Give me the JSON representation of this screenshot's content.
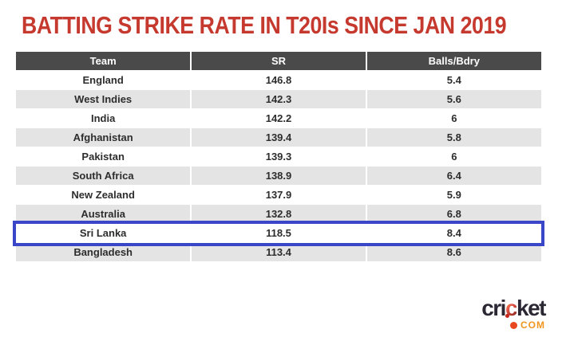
{
  "title": "BATTING STRIKE RATE IN T20Is SINCE JAN 2019",
  "colors": {
    "title_red": "#c6392e",
    "header_bg": "#4a4a4a",
    "row_alt_bg": "#e4e4e4",
    "highlight_blue": "#3a46c8",
    "logo_dark": "#2b2733",
    "logo_orange": "#f0951f",
    "logo_red": "#e8481f"
  },
  "table": {
    "columns": [
      "Team",
      "SR",
      "Balls/Bdry"
    ],
    "rows": [
      {
        "team": "England",
        "sr": "146.8",
        "balls_bdry": "5.4",
        "highlighted": false
      },
      {
        "team": "West Indies",
        "sr": "142.3",
        "balls_bdry": "5.6",
        "highlighted": false
      },
      {
        "team": "India",
        "sr": "142.2",
        "balls_bdry": "6",
        "highlighted": false
      },
      {
        "team": "Afghanistan",
        "sr": "139.4",
        "balls_bdry": "5.8",
        "highlighted": false
      },
      {
        "team": "Pakistan",
        "sr": "139.3",
        "balls_bdry": "6",
        "highlighted": false
      },
      {
        "team": "South Africa",
        "sr": "138.9",
        "balls_bdry": "6.4",
        "highlighted": false
      },
      {
        "team": "New Zealand",
        "sr": "137.9",
        "balls_bdry": "5.9",
        "highlighted": false
      },
      {
        "team": "Australia",
        "sr": "132.8",
        "balls_bdry": "6.8",
        "highlighted": false
      },
      {
        "team": "Sri Lanka",
        "sr": "118.5",
        "balls_bdry": "8.4",
        "highlighted": true
      },
      {
        "team": "Bangladesh",
        "sr": "113.4",
        "balls_bdry": "8.6",
        "highlighted": false
      }
    ]
  },
  "chart_data": {
    "type": "table",
    "title": "BATTING STRIKE RATE IN T20Is SINCE JAN 2019",
    "columns": [
      "Team",
      "SR",
      "Balls/Bdry"
    ],
    "rows": [
      [
        "England",
        146.8,
        5.4
      ],
      [
        "West Indies",
        142.3,
        5.6
      ],
      [
        "India",
        142.2,
        6
      ],
      [
        "Afghanistan",
        139.4,
        5.8
      ],
      [
        "Pakistan",
        139.3,
        6
      ],
      [
        "South Africa",
        138.9,
        6.4
      ],
      [
        "New Zealand",
        137.9,
        5.9
      ],
      [
        "Australia",
        132.8,
        6.8
      ],
      [
        "Sri Lanka",
        118.5,
        8.4
      ],
      [
        "Bangladesh",
        113.4,
        8.6
      ]
    ],
    "highlighted_row": "Sri Lanka",
    "layout_hints": {
      "striped_rows": true,
      "header_style": "dark-gray, white bold text",
      "highlight_style": "blue outline box"
    }
  },
  "logo": {
    "word_start": "cri",
    "ball_letter": "c",
    "word_end": "ket",
    "tld": "COM"
  }
}
